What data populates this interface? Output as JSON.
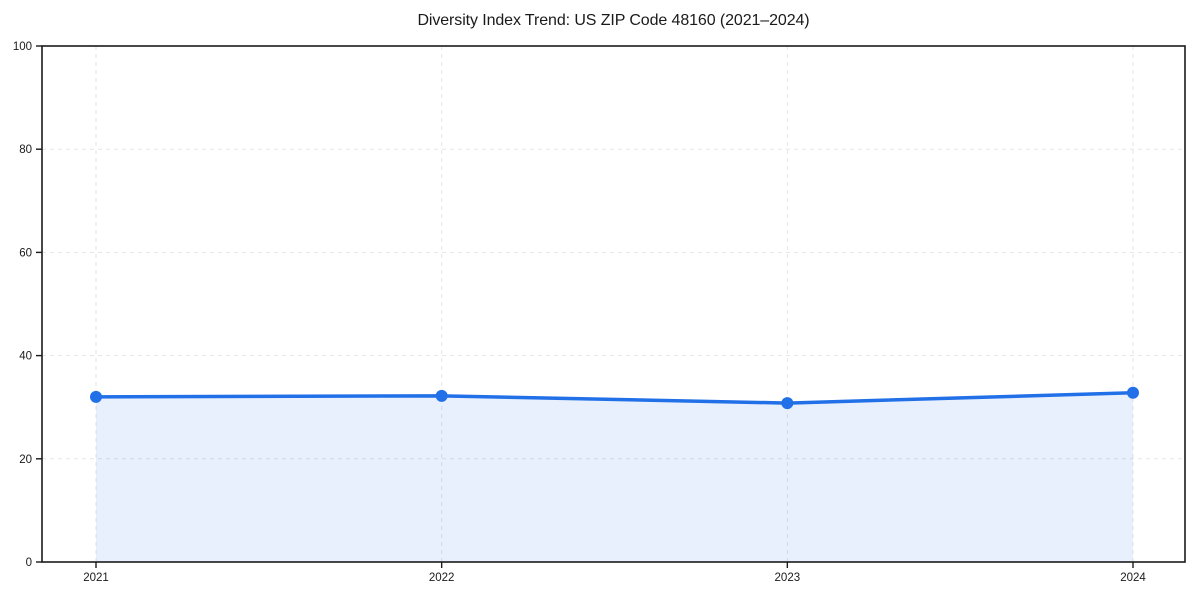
{
  "chart_data": {
    "type": "line",
    "title": "Diversity Index Trend: US ZIP Code 48160 (2021–2024)",
    "categories": [
      "2021",
      "2022",
      "2023",
      "2024"
    ],
    "series": [
      {
        "name": "Diversity Index",
        "values": [
          32.0,
          32.2,
          30.8,
          32.8
        ]
      }
    ],
    "xlabel": "",
    "ylabel": "",
    "ylim": [
      0,
      100
    ],
    "yticks": [
      0,
      20,
      40,
      60,
      80,
      100
    ],
    "grid": "dashed",
    "legend": "none",
    "marker": "circle",
    "area_fill": true,
    "colors": {
      "line": "#2170e8",
      "marker": "#2170e8",
      "area": "#2170e8",
      "area_opacity": 0.1,
      "grid": "#e6e6e6",
      "axis": "#1a1a1a",
      "text": "#1a1a1a",
      "background": "#ffffff"
    }
  }
}
